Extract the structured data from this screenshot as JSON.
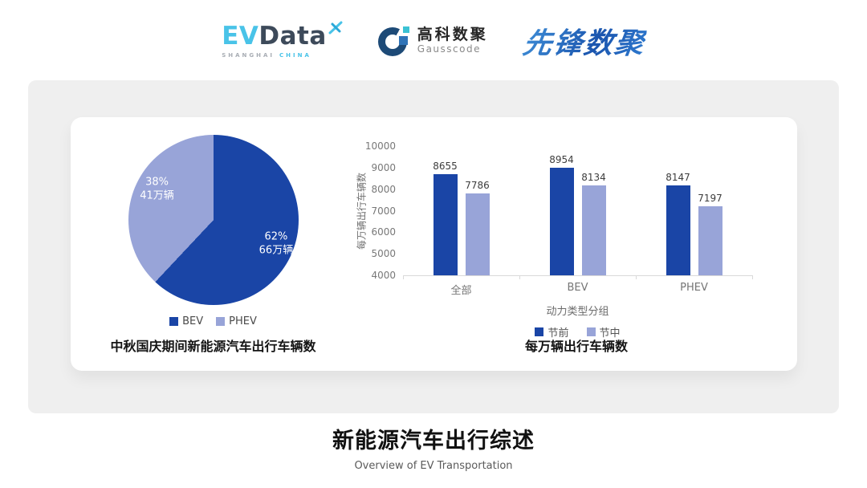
{
  "header": {
    "evdata": {
      "part1": "EV",
      "part2": "Data",
      "tagline_left": "SHANGHAI",
      "tagline_right": "CHINA"
    },
    "gausscode": {
      "name_cn": "高科数聚",
      "name_en": "Gausscode"
    },
    "xianfeng": {
      "name": "先锋数聚"
    }
  },
  "colors": {
    "series_dark": "#1a45a6",
    "series_light": "#98a4d8",
    "panel_gray": "#efefef",
    "evdata_blue": "#49c3e8",
    "evdata_slate": "#3d4a5a",
    "gauss_navy": "#1d4a77",
    "gauss_blue": "#2f74b8",
    "gauss_teal": "#3bc2d4",
    "xianfeng_blue": "#2470c2"
  },
  "footer": {
    "title": "新能源汽车出行综述",
    "subtitle": "Overview of EV Transportation"
  },
  "chart_data": [
    {
      "type": "pie",
      "title": "中秋国庆期间新能源汽车出行车辆数",
      "start_angle": "top-clockwise",
      "legend_position": "bottom",
      "slices": [
        {
          "label": "BEV",
          "percent": 62,
          "percent_label": "62%",
          "value_label": "66万辆",
          "color": "#1a45a6"
        },
        {
          "label": "PHEV",
          "percent": 38,
          "percent_label": "38%",
          "value_label": "41万辆",
          "color": "#98a4d8"
        }
      ]
    },
    {
      "type": "bar",
      "title": "每万辆出行车辆数",
      "categories": [
        "全部",
        "BEV",
        "PHEV"
      ],
      "series": [
        {
          "name": "节前",
          "color": "#1a45a6",
          "values": [
            8655,
            8954,
            8147
          ]
        },
        {
          "name": "节中",
          "color": "#98a4d8",
          "values": [
            7786,
            8134,
            7197
          ]
        }
      ],
      "xlabel": "动力类型分组",
      "ylabel": "每万辆出行车辆数",
      "ylim": [
        4000,
        10000
      ],
      "ytick_step": 1000,
      "grid": false,
      "legend_position": "bottom"
    }
  ]
}
